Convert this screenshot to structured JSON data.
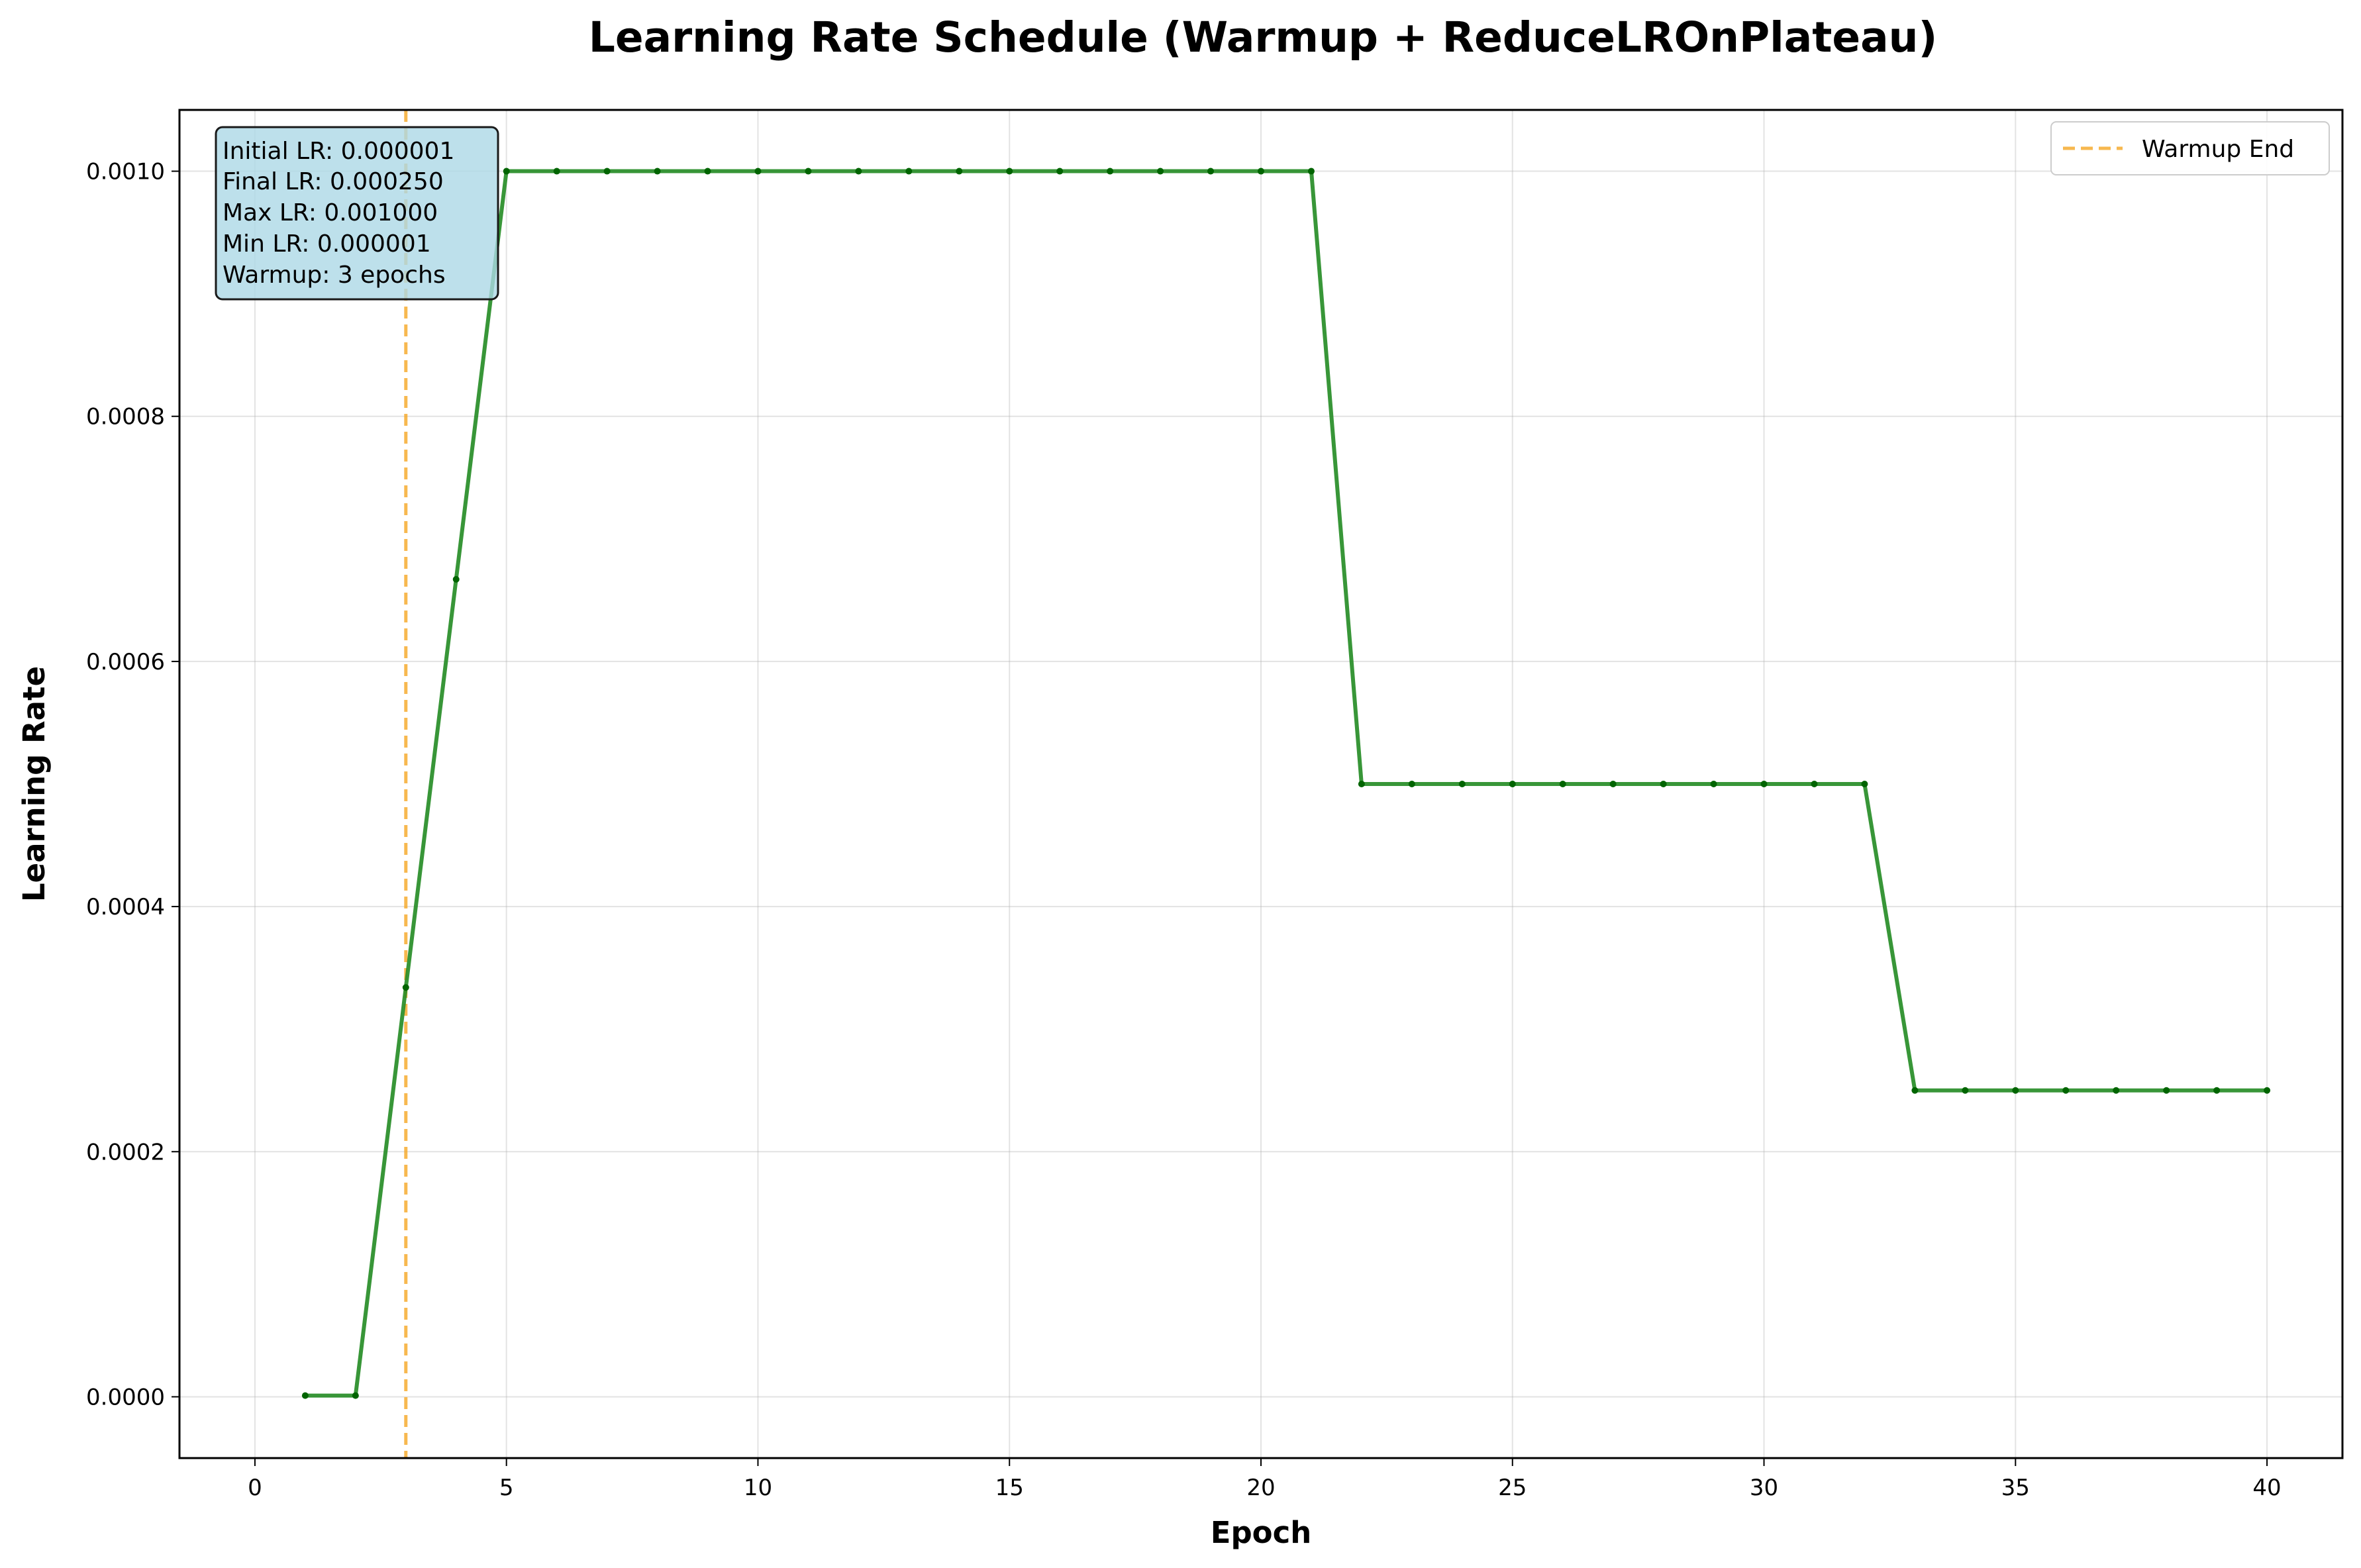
{
  "chart_data": {
    "type": "line",
    "title": "Learning Rate Schedule (Warmup + ReduceLROnPlateau)",
    "xlabel": "Epoch",
    "ylabel": "Learning Rate",
    "xlim": [
      -1.5,
      41.5
    ],
    "ylim": [
      -5e-05,
      0.00105
    ],
    "xticks": [
      0,
      5,
      10,
      15,
      20,
      25,
      30,
      35,
      40
    ],
    "yticks": [
      0.0,
      0.0002,
      0.0004,
      0.0006,
      0.0008,
      0.001
    ],
    "ytick_labels": [
      "0.0000",
      "0.0002",
      "0.0004",
      "0.0006",
      "0.0008",
      "0.0010"
    ],
    "grid": true,
    "legend_position": "top-right",
    "series": [
      {
        "name": "",
        "color": "#228b22",
        "x": [
          1,
          2,
          3,
          4,
          5,
          6,
          7,
          8,
          9,
          10,
          11,
          12,
          13,
          14,
          15,
          16,
          17,
          18,
          19,
          20,
          21,
          22,
          23,
          24,
          25,
          26,
          27,
          28,
          29,
          30,
          31,
          32,
          33,
          34,
          35,
          36,
          37,
          38,
          39,
          40
        ],
        "values": [
          1e-06,
          1e-06,
          0.000334,
          0.000667,
          0.001,
          0.001,
          0.001,
          0.001,
          0.001,
          0.001,
          0.001,
          0.001,
          0.001,
          0.001,
          0.001,
          0.001,
          0.001,
          0.001,
          0.001,
          0.001,
          0.001,
          0.0005,
          0.0005,
          0.0005,
          0.0005,
          0.0005,
          0.0005,
          0.0005,
          0.0005,
          0.0005,
          0.0005,
          0.0005,
          0.00025,
          0.00025,
          0.00025,
          0.00025,
          0.00025,
          0.00025,
          0.00025,
          0.00025
        ]
      }
    ],
    "reference_lines": [
      {
        "name": "Warmup End",
        "x": 3,
        "color": "#f5a623",
        "style": "dashed"
      }
    ],
    "info_box": [
      "Initial LR: 0.000001",
      "Final LR: 0.000250",
      "Max LR: 0.001000",
      "Min LR: 0.000001",
      "Warmup: 3 epochs"
    ],
    "info_box_color": "#add8e6"
  }
}
